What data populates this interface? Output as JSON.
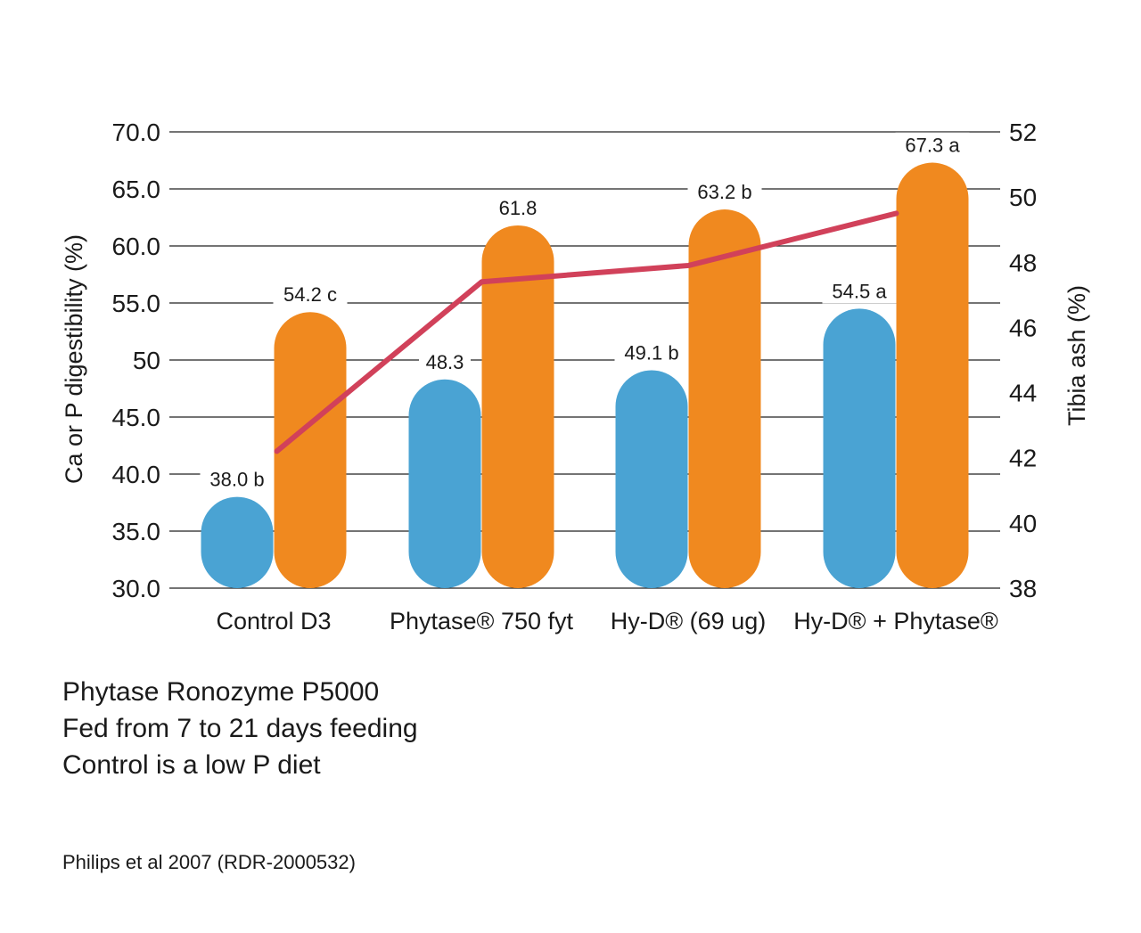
{
  "chart_data": {
    "type": "bar",
    "categories": [
      "Control D3",
      "Phytase® 750 fyt",
      "Hy-D® (69 ug)",
      "Hy-D® + Phytase®"
    ],
    "series": [
      {
        "values": [
          38.0,
          48.3,
          49.1,
          54.5
        ],
        "labels": [
          "38.0 b",
          "48.3",
          "49.1 b",
          "54.5 a"
        ],
        "color": "#4aa3d3"
      },
      {
        "values": [
          54.2,
          61.8,
          63.2,
          67.3
        ],
        "labels": [
          "54.2 c",
          "61.8",
          "63.2 b",
          "67.3 a"
        ],
        "color": "#f0891f"
      }
    ],
    "line": {
      "values": [
        42.2,
        47.4,
        47.9,
        49.5
      ],
      "axis": "right",
      "color": "#d1415a"
    },
    "ylabel": "Ca or P digestibility (%)",
    "y2label": "Tibia ash (%)",
    "ylim": [
      30,
      70
    ],
    "y2lim": [
      38,
      52
    ],
    "yticks": [
      "30.0",
      "35.0",
      "40.0",
      "45.0",
      "50",
      "55.0",
      "60.0",
      "65.0",
      "70.0"
    ],
    "y2ticks": [
      "38",
      "40",
      "42",
      "44",
      "46",
      "48",
      "50",
      "52"
    ],
    "grid": true
  },
  "notes": {
    "line1": "Phytase Ronozyme P5000",
    "line2": "Fed from 7 to 21 days feeding",
    "line3": "Control is a low P diet"
  },
  "source": "Philips et al 2007 (RDR-2000532)"
}
